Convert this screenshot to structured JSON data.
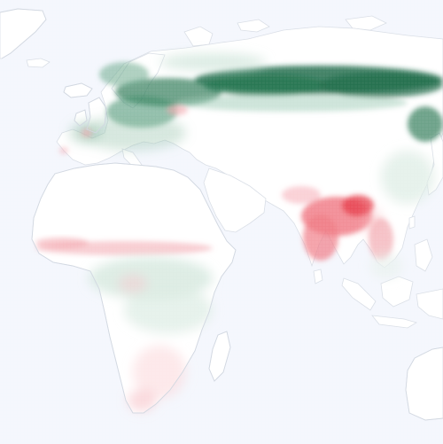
{
  "map": {
    "colors": {
      "ocean": "#f4f7fd",
      "land": "#ffffff",
      "coastline": "#d9dee6",
      "positive_strong": "#1f6b4a",
      "positive_light": "#cfe4d8",
      "negative_strong": "#e63946",
      "negative_light": "#fbd9dc"
    },
    "regions": [
      {
        "name": "europe",
        "visible": true
      },
      {
        "name": "asia",
        "visible": true
      },
      {
        "name": "africa",
        "visible": true
      },
      {
        "name": "arabian-peninsula",
        "visible": true
      },
      {
        "name": "indian-subcontinent",
        "visible": true
      },
      {
        "name": "southeast-asia",
        "visible": true
      },
      {
        "name": "madagascar",
        "visible": true
      },
      {
        "name": "greenland",
        "visible": true
      },
      {
        "name": "iceland",
        "visible": true
      },
      {
        "name": "british-isles",
        "visible": true
      },
      {
        "name": "japan",
        "visible": true
      },
      {
        "name": "australia",
        "visible": true
      }
    ],
    "patterns": [
      {
        "name": "boreal-green-band",
        "sign": "positive",
        "intensity": "strong"
      },
      {
        "name": "indian-subcontinent-red",
        "sign": "negative",
        "intensity": "strong"
      },
      {
        "name": "sahel-red-band",
        "sign": "negative",
        "intensity": "light"
      },
      {
        "name": "central-africa-mix",
        "sign": "mixed",
        "intensity": "light"
      }
    ]
  }
}
